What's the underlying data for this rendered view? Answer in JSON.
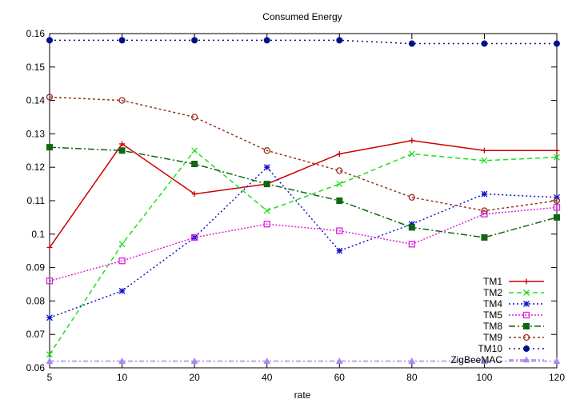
{
  "chart_data": {
    "type": "line",
    "title": "Consumed Energy",
    "xlabel": "rate",
    "ylabel": "",
    "x": [
      "5",
      "10",
      "20",
      "40",
      "60",
      "80",
      "100",
      "120"
    ],
    "ylim": [
      0.06,
      0.16
    ],
    "yticks": [
      "0.06",
      "0.07",
      "0.08",
      "0.09",
      "0.1",
      "0.11",
      "0.12",
      "0.13",
      "0.14",
      "0.15",
      "0.16"
    ],
    "legend_position": "bottom-right",
    "grid": false,
    "series": [
      {
        "name": "TM1",
        "color": "#cc0000",
        "marker": "plus",
        "dash": "",
        "values": [
          0.096,
          0.127,
          0.112,
          0.115,
          0.124,
          0.128,
          0.125,
          0.125
        ]
      },
      {
        "name": "TM2",
        "color": "#22dd22",
        "marker": "cross",
        "dash": "6,4",
        "values": [
          0.064,
          0.097,
          0.125,
          0.107,
          0.115,
          0.124,
          0.122,
          0.123
        ]
      },
      {
        "name": "TM4",
        "color": "#1111cc",
        "marker": "star",
        "dash": "2,3",
        "values": [
          0.075,
          0.083,
          0.099,
          0.12,
          0.095,
          0.103,
          0.112,
          0.111
        ]
      },
      {
        "name": "TM5",
        "color": "#dd22dd",
        "marker": "square-open",
        "dash": "2,2",
        "values": [
          0.086,
          0.092,
          0.099,
          0.103,
          0.101,
          0.097,
          0.106,
          0.108
        ]
      },
      {
        "name": "TM8",
        "color": "#116611",
        "marker": "square-filled",
        "dash": "8,3,2,3",
        "values": [
          0.126,
          0.125,
          0.121,
          0.115,
          0.11,
          0.102,
          0.099,
          0.105
        ]
      },
      {
        "name": "TM9",
        "color": "#993322",
        "marker": "circle-open",
        "dash": "3,3",
        "values": [
          0.141,
          0.14,
          0.135,
          0.125,
          0.119,
          0.111,
          0.107,
          0.11
        ]
      },
      {
        "name": "TM10",
        "color": "#001188",
        "marker": "circle-filled",
        "dash": "2,4",
        "values": [
          0.158,
          0.158,
          0.158,
          0.158,
          0.158,
          0.157,
          0.157,
          0.157
        ]
      },
      {
        "name": "ZigBeeMAC",
        "color": "#aa88ee",
        "marker": "triangle",
        "dash": "6,3,2,3",
        "values": [
          0.062,
          0.062,
          0.062,
          0.062,
          0.062,
          0.062,
          0.062,
          0.062
        ]
      }
    ]
  }
}
